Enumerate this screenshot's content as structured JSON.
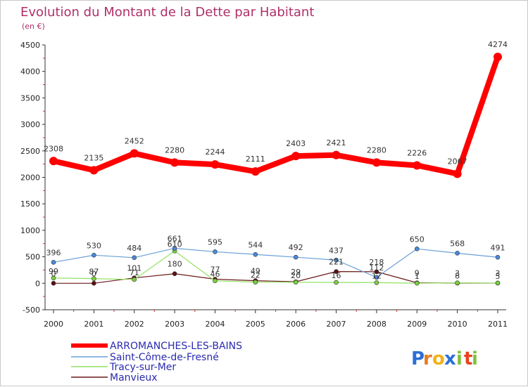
{
  "chart_data": {
    "type": "line",
    "title": "Evolution du Montant de la Dette par Habitant",
    "subtitle": "(en €)",
    "xlabel": "",
    "ylabel": "",
    "categories": [
      "2000",
      "2001",
      "2002",
      "2003",
      "2004",
      "2005",
      "2006",
      "2007",
      "2008",
      "2009",
      "2010",
      "2011"
    ],
    "ylim": [
      -500,
      4500
    ],
    "yticks": [
      -500,
      0,
      500,
      1000,
      1500,
      2000,
      2500,
      3000,
      3500,
      4000,
      4500
    ],
    "grid": false,
    "legend_position": "bottom-left",
    "series": [
      {
        "name": "ARROMANCHES-LES-BAINS",
        "color": "#ff0000",
        "values": [
          2308,
          2135,
          2452,
          2280,
          2244,
          2111,
          2403,
          2421,
          2280,
          2226,
          2067,
          4274
        ],
        "labels": [
          "2308",
          "2135",
          "2452",
          "2280",
          "2244",
          "2111",
          "2403",
          "2421",
          "2280",
          "2226",
          "2067",
          "4274"
        ]
      },
      {
        "name": "Saint-Côme-de-Fresné",
        "color": "#6aa0d8",
        "values": [
          396,
          530,
          484,
          661,
          595,
          544,
          492,
          437,
          112,
          650,
          568,
          491
        ],
        "labels": [
          "396",
          "530",
          "484",
          "661",
          "595",
          "544",
          "492",
          "437",
          "112",
          "650",
          "568",
          "491"
        ]
      },
      {
        "name": "Tracy-sur-Mer",
        "color": "#90e060",
        "values": [
          99,
          87,
          71,
          610,
          46,
          22,
          20,
          16,
          12,
          1,
          8,
          5
        ],
        "labels": [
          "99",
          "87",
          "71",
          "610",
          "46",
          "22",
          "20",
          "16",
          "12",
          "1",
          "8",
          "5"
        ]
      },
      {
        "name": "Manvieux",
        "color": "#6b1a1a",
        "values": [
          0,
          0,
          101,
          180,
          77,
          49,
          29,
          221,
          218,
          9,
          3,
          3
        ],
        "labels": [
          "0",
          "0",
          "101",
          "180",
          "77",
          "49",
          "29",
          "221",
          "218",
          "9",
          "3",
          "3"
        ]
      }
    ]
  },
  "logo": {
    "text": "Proxiti",
    "letters": [
      "P",
      "r",
      "o",
      "x",
      "i",
      "t",
      "i"
    ],
    "colors": [
      "#2b6fd6",
      "#e87a1e",
      "#f0b21a",
      "#2b6fd6",
      "#7ec23a",
      "#e8421e",
      "#7ec23a"
    ]
  }
}
